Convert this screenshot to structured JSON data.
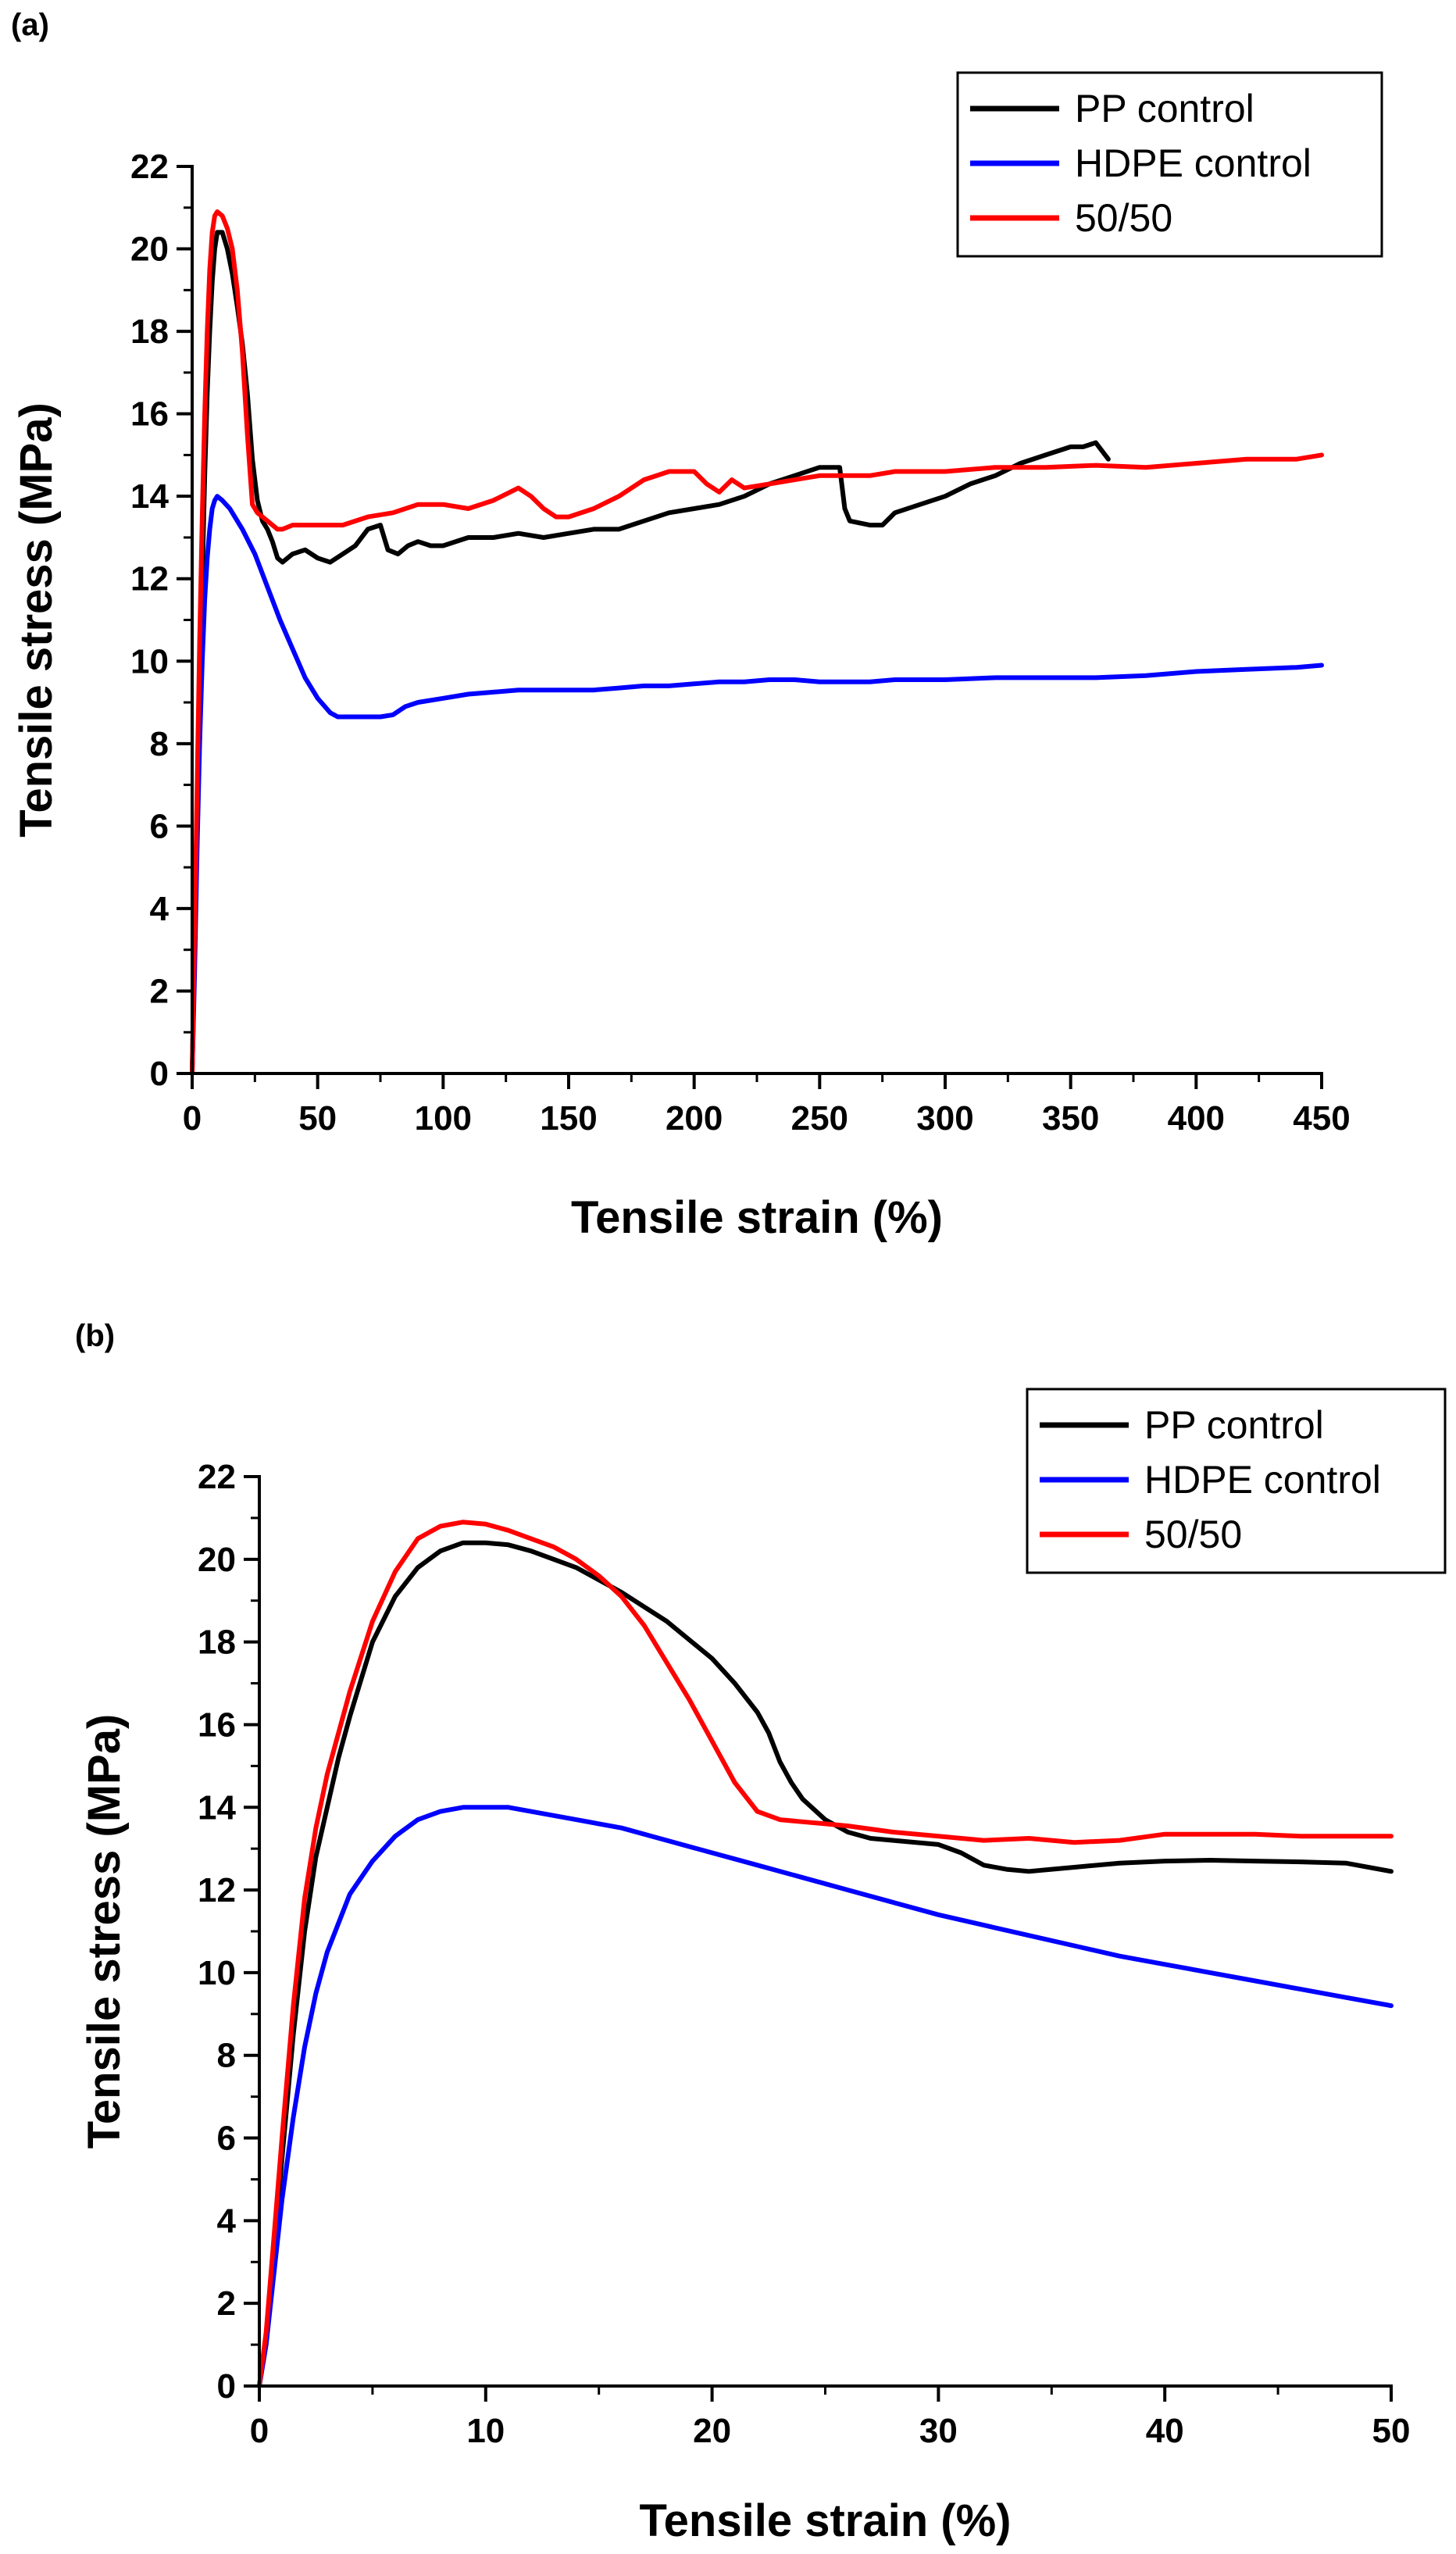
{
  "charts": [
    {
      "panel_label": "(a)",
      "chart_data": {
        "type": "line",
        "xlabel": "Tensile strain (%)",
        "ylabel": "Tensile stress (MPa)",
        "xlim": [
          0,
          450
        ],
        "ylim": [
          0,
          22
        ],
        "xticks": [
          0,
          50,
          100,
          150,
          200,
          250,
          300,
          350,
          400,
          450
        ],
        "yticks": [
          0,
          2,
          4,
          6,
          8,
          10,
          12,
          14,
          16,
          18,
          20,
          22
        ],
        "legend_position": "top-right",
        "series": [
          {
            "name": "PP control",
            "color": "#000000",
            "x": [
              0,
              1,
              2,
              3,
              4,
              5,
              6,
              7,
              8,
              9,
              10,
              12,
              14,
              16,
              18,
              20,
              22,
              24,
              26,
              28,
              30,
              32,
              34,
              36,
              40,
              45,
              50,
              55,
              60,
              65,
              70,
              75,
              78,
              82,
              86,
              90,
              95,
              100,
              110,
              120,
              130,
              140,
              150,
              160,
              170,
              180,
              190,
              200,
              210,
              220,
              230,
              240,
              250,
              258,
              260,
              262,
              270,
              275,
              280,
              290,
              300,
              310,
              320,
              330,
              340,
              350,
              355,
              360,
              365
            ],
            "y": [
              0,
              3,
              6,
              9,
              12,
              14.5,
              16.5,
              18,
              19.2,
              20,
              20.4,
              20.4,
              20,
              19.4,
              18.6,
              17.7,
              16.5,
              14.9,
              13.9,
              13.4,
              13.2,
              12.9,
              12.5,
              12.4,
              12.6,
              12.7,
              12.5,
              12.4,
              12.6,
              12.8,
              13.2,
              13.3,
              12.7,
              12.6,
              12.8,
              12.9,
              12.8,
              12.8,
              13,
              13,
              13.1,
              13,
              13.1,
              13.2,
              13.2,
              13.4,
              13.6,
              13.7,
              13.8,
              14,
              14.3,
              14.5,
              14.7,
              14.7,
              13.7,
              13.4,
              13.3,
              13.3,
              13.6,
              13.8,
              14,
              14.3,
              14.5,
              14.8,
              15,
              15.2,
              15.2,
              15.3,
              14.9
            ]
          },
          {
            "name": "HDPE control",
            "color": "#0000ff",
            "x": [
              0,
              1,
              2,
              3,
              4,
              5,
              6,
              7,
              8,
              9,
              10,
              12,
              15,
              20,
              25,
              30,
              35,
              40,
              45,
              50,
              55,
              58,
              60,
              65,
              70,
              75,
              80,
              85,
              90,
              100,
              110,
              120,
              130,
              140,
              150,
              160,
              170,
              180,
              190,
              200,
              210,
              220,
              230,
              240,
              250,
              260,
              270,
              280,
              290,
              300,
              320,
              340,
              360,
              380,
              400,
              420,
              440,
              450
            ],
            "y": [
              0,
              2.5,
              5.5,
              8,
              10,
              11.5,
              12.5,
              13.2,
              13.7,
              13.9,
              14,
              13.9,
              13.7,
              13.2,
              12.6,
              11.8,
              11,
              10.3,
              9.6,
              9.1,
              8.75,
              8.65,
              8.65,
              8.65,
              8.65,
              8.65,
              8.7,
              8.9,
              9,
              9.1,
              9.2,
              9.25,
              9.3,
              9.3,
              9.3,
              9.3,
              9.35,
              9.4,
              9.4,
              9.45,
              9.5,
              9.5,
              9.55,
              9.55,
              9.5,
              9.5,
              9.5,
              9.55,
              9.55,
              9.55,
              9.6,
              9.6,
              9.6,
              9.65,
              9.75,
              9.8,
              9.85,
              9.9
            ]
          },
          {
            "name": "50/50",
            "color": "#ff0000",
            "x": [
              0,
              1,
              2,
              3,
              4,
              5,
              6,
              7,
              8,
              9,
              10,
              12,
              14,
              16,
              18,
              20,
              22,
              24,
              26,
              28,
              30,
              32,
              34,
              36,
              40,
              50,
              60,
              70,
              80,
              90,
              100,
              110,
              120,
              130,
              135,
              140,
              145,
              150,
              160,
              170,
              180,
              190,
              200,
              205,
              210,
              215,
              220,
              230,
              240,
              250,
              260,
              270,
              280,
              290,
              300,
              320,
              340,
              360,
              380,
              400,
              420,
              440,
              450
            ],
            "y": [
              0,
              3.5,
              7,
              10.5,
              13.5,
              16,
              18,
              19.5,
              20.4,
              20.8,
              20.9,
              20.8,
              20.5,
              20,
              19,
              17.5,
              15.5,
              13.8,
              13.6,
              13.5,
              13.4,
              13.3,
              13.2,
              13.2,
              13.3,
              13.3,
              13.3,
              13.5,
              13.6,
              13.8,
              13.8,
              13.7,
              13.9,
              14.2,
              14,
              13.7,
              13.5,
              13.5,
              13.7,
              14,
              14.4,
              14.6,
              14.6,
              14.3,
              14.1,
              14.4,
              14.2,
              14.3,
              14.4,
              14.5,
              14.5,
              14.5,
              14.6,
              14.6,
              14.6,
              14.7,
              14.7,
              14.75,
              14.7,
              14.8,
              14.9,
              14.9,
              15
            ]
          }
        ]
      }
    },
    {
      "panel_label": "(b)",
      "chart_data": {
        "type": "line",
        "xlabel": "Tensile strain (%)",
        "ylabel": "Tensile stress (MPa)",
        "xlim": [
          0,
          50
        ],
        "ylim": [
          0,
          22
        ],
        "xticks": [
          0,
          10,
          20,
          30,
          40,
          50
        ],
        "yticks": [
          0,
          2,
          4,
          6,
          8,
          10,
          12,
          14,
          16,
          18,
          20,
          22
        ],
        "legend_position": "top-right",
        "series": [
          {
            "name": "PP control",
            "color": "#000000",
            "x": [
              0,
              0.3,
              0.6,
              1,
              1.5,
              2,
              2.5,
              3,
              3.5,
              4,
              5,
              6,
              7,
              8,
              9,
              10,
              11,
              12,
              14,
              16,
              18,
              20,
              21,
              22,
              22.5,
              23,
              23.5,
              24,
              25,
              26,
              27,
              28,
              30,
              31,
              32,
              33,
              34,
              35,
              36,
              38,
              40,
              42,
              44,
              46,
              48,
              50
            ],
            "y": [
              0,
              1.2,
              3,
              5.5,
              8.5,
              11,
              12.8,
              14,
              15.2,
              16.2,
              18,
              19.1,
              19.8,
              20.2,
              20.4,
              20.4,
              20.35,
              20.2,
              19.8,
              19.2,
              18.5,
              17.6,
              17,
              16.3,
              15.8,
              15.1,
              14.6,
              14.2,
              13.7,
              13.4,
              13.25,
              13.2,
              13.1,
              12.9,
              12.6,
              12.5,
              12.45,
              12.5,
              12.55,
              12.65,
              12.7,
              12.72,
              12.7,
              12.68,
              12.65,
              12.45
            ]
          },
          {
            "name": "HDPE control",
            "color": "#0000ff",
            "x": [
              0,
              0.3,
              0.6,
              1,
              1.5,
              2,
              2.5,
              3,
              4,
              5,
              6,
              7,
              8,
              9,
              10,
              11,
              12,
              14,
              16,
              18,
              20,
              22,
              24,
              26,
              28,
              30,
              32,
              34,
              36,
              38,
              40,
              42,
              44,
              46,
              48,
              50
            ],
            "y": [
              0,
              1,
              2.5,
              4.5,
              6.5,
              8.2,
              9.5,
              10.5,
              11.9,
              12.7,
              13.3,
              13.7,
              13.9,
              14,
              14,
              14,
              13.9,
              13.7,
              13.5,
              13.2,
              12.9,
              12.6,
              12.3,
              12,
              11.7,
              11.4,
              11.15,
              10.9,
              10.65,
              10.4,
              10.2,
              10,
              9.8,
              9.6,
              9.4,
              9.2
            ]
          },
          {
            "name": "50/50",
            "color": "#ff0000",
            "x": [
              0,
              0.3,
              0.6,
              1,
              1.5,
              2,
              2.5,
              3,
              4,
              5,
              6,
              7,
              8,
              9,
              10,
              11,
              12,
              13,
              14,
              15,
              16,
              17,
              18,
              19,
              20,
              21,
              22,
              23,
              24,
              25,
              26,
              28,
              30,
              32,
              34,
              36,
              38,
              40,
              42,
              44,
              46,
              48,
              50
            ],
            "y": [
              0,
              1.3,
              3.3,
              6,
              9.2,
              11.8,
              13.5,
              14.8,
              16.8,
              18.5,
              19.7,
              20.5,
              20.8,
              20.9,
              20.85,
              20.7,
              20.5,
              20.3,
              20,
              19.6,
              19.1,
              18.4,
              17.5,
              16.6,
              15.6,
              14.6,
              13.9,
              13.7,
              13.65,
              13.6,
              13.55,
              13.4,
              13.3,
              13.2,
              13.25,
              13.15,
              13.2,
              13.35,
              13.35,
              13.35,
              13.3,
              13.3,
              13.3
            ]
          }
        ]
      }
    }
  ]
}
